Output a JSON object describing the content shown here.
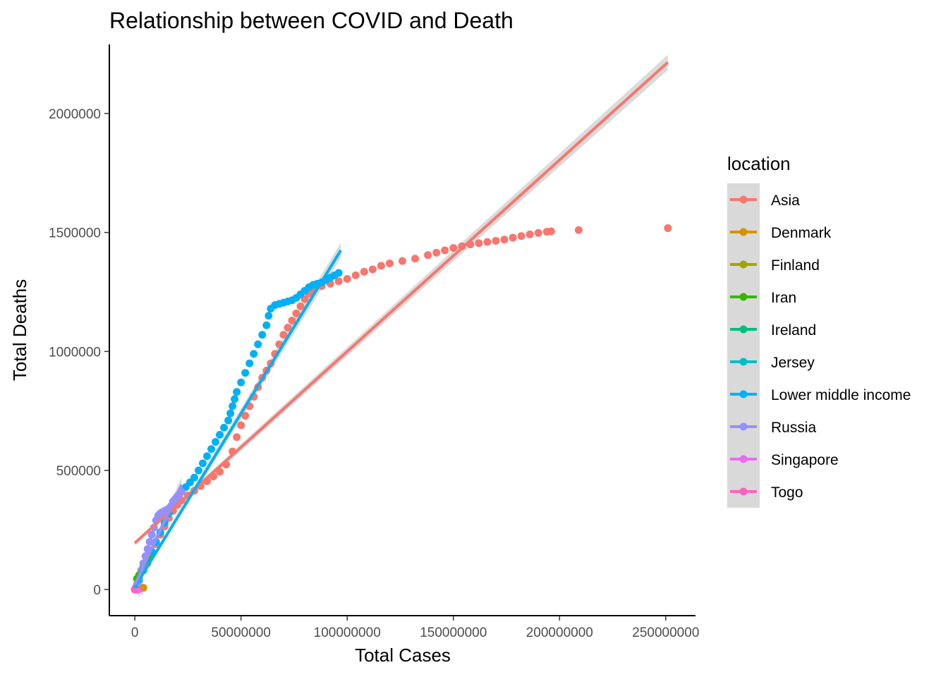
{
  "chart_data": {
    "type": "scatter",
    "title": "Relationship between COVID and Death",
    "xlabel": "Total Cases",
    "ylabel": "Total Deaths",
    "xlim": [
      -12000000,
      264000000
    ],
    "ylim": [
      -110000,
      2290000
    ],
    "x_ticks": [
      0,
      50000000,
      100000000,
      150000000,
      200000000,
      250000000
    ],
    "x_tick_labels": [
      "0",
      "50000000",
      "100000000",
      "150000000",
      "200000000",
      "250000000"
    ],
    "y_ticks": [
      0,
      500000,
      1000000,
      1500000,
      2000000
    ],
    "y_tick_labels": [
      "0",
      "500000",
      "1000000",
      "1500000",
      "2000000"
    ],
    "grid": false,
    "legend": {
      "title": "location",
      "placement": "right"
    },
    "series": [
      {
        "name": "Asia",
        "color": "#F8766D",
        "points": [
          [
            1000000,
            20000
          ],
          [
            2000000,
            40000
          ],
          [
            4000000,
            80000
          ],
          [
            6000000,
            110000
          ],
          [
            8000000,
            150000
          ],
          [
            10000000,
            190000
          ],
          [
            12000000,
            230000
          ],
          [
            14000000,
            265000
          ],
          [
            16000000,
            300000
          ],
          [
            18000000,
            330000
          ],
          [
            20000000,
            355000
          ],
          [
            22000000,
            375000
          ],
          [
            25000000,
            395000
          ],
          [
            28000000,
            415000
          ],
          [
            31000000,
            435000
          ],
          [
            34000000,
            455000
          ],
          [
            37000000,
            475000
          ],
          [
            40000000,
            495000
          ],
          [
            43000000,
            525000
          ],
          [
            46000000,
            580000
          ],
          [
            48000000,
            640000
          ],
          [
            50000000,
            690000
          ],
          [
            52000000,
            730000
          ],
          [
            54000000,
            770000
          ],
          [
            56000000,
            810000
          ],
          [
            58000000,
            850000
          ],
          [
            60000000,
            890000
          ],
          [
            62000000,
            920000
          ],
          [
            64000000,
            950000
          ],
          [
            66000000,
            990000
          ],
          [
            68000000,
            1030000
          ],
          [
            70000000,
            1070000
          ],
          [
            72000000,
            1100000
          ],
          [
            74000000,
            1130000
          ],
          [
            76000000,
            1160000
          ],
          [
            78000000,
            1190000
          ],
          [
            80000000,
            1220000
          ],
          [
            82000000,
            1245000
          ],
          [
            84000000,
            1260000
          ],
          [
            88000000,
            1275000
          ],
          [
            92000000,
            1285000
          ],
          [
            96000000,
            1295000
          ],
          [
            100000000,
            1305000
          ],
          [
            104000000,
            1320000
          ],
          [
            108000000,
            1335000
          ],
          [
            112000000,
            1345000
          ],
          [
            116000000,
            1360000
          ],
          [
            120000000,
            1370000
          ],
          [
            126000000,
            1380000
          ],
          [
            132000000,
            1390000
          ],
          [
            138000000,
            1405000
          ],
          [
            142000000,
            1415000
          ],
          [
            146000000,
            1425000
          ],
          [
            150000000,
            1435000
          ],
          [
            154000000,
            1442000
          ],
          [
            158000000,
            1450000
          ],
          [
            162000000,
            1455000
          ],
          [
            166000000,
            1460000
          ],
          [
            170000000,
            1465000
          ],
          [
            174000000,
            1470000
          ],
          [
            178000000,
            1478000
          ],
          [
            182000000,
            1485000
          ],
          [
            186000000,
            1492000
          ],
          [
            190000000,
            1498000
          ],
          [
            194000000,
            1503000
          ],
          [
            196000000,
            1505000
          ],
          [
            209000000,
            1510000
          ],
          [
            251000000,
            1518000
          ]
        ],
        "trend": [
          [
            0,
            195000
          ],
          [
            251000000,
            2215000
          ]
        ]
      },
      {
        "name": "Denmark",
        "color": "#D89000",
        "points": [
          [
            500000,
            2000
          ],
          [
            1500000,
            3500
          ],
          [
            3000000,
            5500
          ],
          [
            4000000,
            7000
          ]
        ],
        "trend": [
          [
            0,
            1500
          ],
          [
            4000000,
            7000
          ]
        ]
      },
      {
        "name": "Finland",
        "color": "#A3A500",
        "points": [
          [
            300000,
            2000
          ],
          [
            800000,
            4000
          ],
          [
            1200000,
            6500
          ],
          [
            1500000,
            8500
          ]
        ],
        "trend": [
          [
            0,
            1500
          ],
          [
            1500000,
            8500
          ]
        ]
      },
      {
        "name": "Iran",
        "color": "#39B600",
        "points": [
          [
            1000000,
            45000
          ],
          [
            2000000,
            60000
          ],
          [
            3000000,
            80000
          ],
          [
            4000000,
            95000
          ],
          [
            5000000,
            110000
          ],
          [
            6000000,
            125000
          ],
          [
            7000000,
            140000
          ]
        ],
        "trend": [
          [
            0,
            40000
          ],
          [
            7500000,
            145000
          ]
        ]
      },
      {
        "name": "Ireland",
        "color": "#00BF7D",
        "points": [
          [
            200000,
            4000
          ],
          [
            500000,
            5000
          ],
          [
            1000000,
            6500
          ],
          [
            1500000,
            8000
          ]
        ],
        "trend": [
          [
            0,
            4000
          ],
          [
            1700000,
            8500
          ]
        ]
      },
      {
        "name": "Jersey",
        "color": "#00BFC4",
        "points": [
          [
            10000,
            50
          ],
          [
            50000,
            100
          ],
          [
            80000,
            180
          ]
        ],
        "trend": [
          [
            0,
            50
          ],
          [
            80000,
            180
          ]
        ]
      },
      {
        "name": "Lower middle income",
        "color": "#00B0F6",
        "points": [
          [
            1000000,
            20000
          ],
          [
            2000000,
            40000
          ],
          [
            4000000,
            80000
          ],
          [
            6000000,
            120000
          ],
          [
            8000000,
            160000
          ],
          [
            10000000,
            200000
          ],
          [
            12000000,
            240000
          ],
          [
            14000000,
            280000
          ],
          [
            16000000,
            320000
          ],
          [
            18000000,
            360000
          ],
          [
            20000000,
            390000
          ],
          [
            22000000,
            410000
          ],
          [
            24000000,
            430000
          ],
          [
            26000000,
            450000
          ],
          [
            28000000,
            470000
          ],
          [
            30000000,
            500000
          ],
          [
            32000000,
            530000
          ],
          [
            34000000,
            560000
          ],
          [
            36000000,
            590000
          ],
          [
            38000000,
            620000
          ],
          [
            40000000,
            650000
          ],
          [
            42000000,
            680000
          ],
          [
            44000000,
            710000
          ],
          [
            45000000,
            740000
          ],
          [
            46000000,
            770000
          ],
          [
            47000000,
            800000
          ],
          [
            48000000,
            830000
          ],
          [
            50000000,
            870000
          ],
          [
            52000000,
            910000
          ],
          [
            54000000,
            950000
          ],
          [
            56000000,
            990000
          ],
          [
            58000000,
            1030000
          ],
          [
            60000000,
            1070000
          ],
          [
            62000000,
            1110000
          ],
          [
            63000000,
            1150000
          ],
          [
            64000000,
            1180000
          ],
          [
            66000000,
            1195000
          ],
          [
            68000000,
            1200000
          ],
          [
            70000000,
            1205000
          ],
          [
            72000000,
            1210000
          ],
          [
            74000000,
            1215000
          ],
          [
            76000000,
            1225000
          ],
          [
            78000000,
            1240000
          ],
          [
            80000000,
            1255000
          ],
          [
            82000000,
            1270000
          ],
          [
            84000000,
            1280000
          ],
          [
            86000000,
            1285000
          ],
          [
            88000000,
            1290000
          ],
          [
            90000000,
            1300000
          ],
          [
            92000000,
            1310000
          ],
          [
            94000000,
            1320000
          ],
          [
            96000000,
            1330000
          ]
        ],
        "trend": [
          [
            0,
            10000
          ],
          [
            97000000,
            1425000
          ]
        ]
      },
      {
        "name": "Russia",
        "color": "#9590FF",
        "points": [
          [
            1000000,
            20000
          ],
          [
            2000000,
            50000
          ],
          [
            3000000,
            80000
          ],
          [
            4000000,
            110000
          ],
          [
            5000000,
            140000
          ],
          [
            6000000,
            170000
          ],
          [
            7000000,
            200000
          ],
          [
            8000000,
            230000
          ],
          [
            9000000,
            260000
          ],
          [
            10000000,
            290000
          ],
          [
            11000000,
            310000
          ],
          [
            12000000,
            320000
          ],
          [
            13000000,
            325000
          ],
          [
            14000000,
            330000
          ],
          [
            15000000,
            335000
          ],
          [
            16000000,
            340000
          ],
          [
            17000000,
            350000
          ],
          [
            18000000,
            370000
          ],
          [
            19000000,
            380000
          ],
          [
            20000000,
            390000
          ],
          [
            21000000,
            400000
          ],
          [
            22000000,
            410000
          ]
        ],
        "trend": [
          [
            0,
            20000
          ],
          [
            22000000,
            440000
          ]
        ]
      },
      {
        "name": "Singapore",
        "color": "#E76BF3",
        "points": [
          [
            200000,
            0
          ],
          [
            600000,
            500
          ],
          [
            1200000,
            1000
          ],
          [
            2000000,
            1500
          ]
        ],
        "trend": [
          [
            0,
            0
          ],
          [
            2500000,
            2000
          ]
        ]
      },
      {
        "name": "Togo",
        "color": "#FF62BC",
        "points": [
          [
            10000,
            100
          ],
          [
            20000,
            200
          ],
          [
            39000,
            290
          ]
        ],
        "trend": [
          [
            0,
            100
          ],
          [
            40000,
            300
          ]
        ]
      }
    ]
  }
}
